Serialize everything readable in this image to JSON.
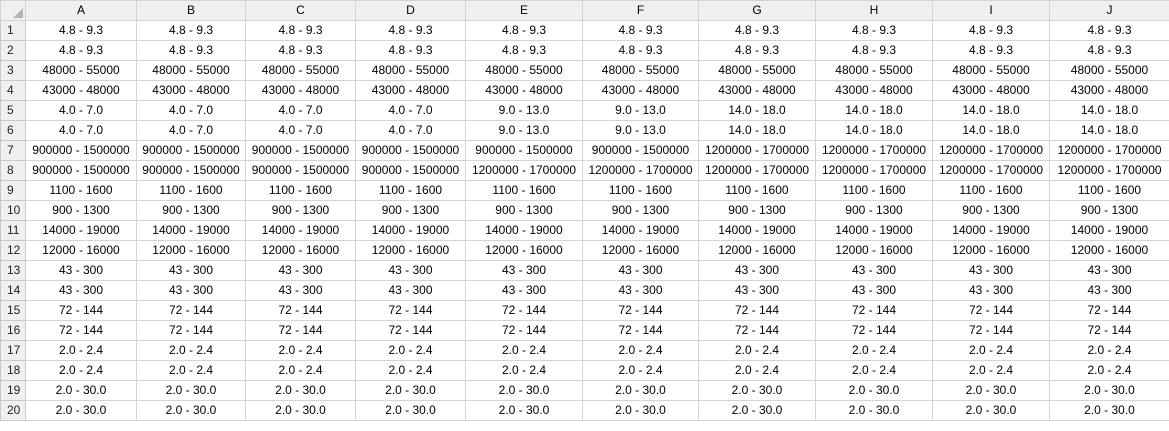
{
  "columns": [
    "A",
    "B",
    "C",
    "D",
    "E",
    "F",
    "G",
    "H",
    "I",
    "J"
  ],
  "rows": [
    {
      "num": "1",
      "cells": [
        "4.8 - 9.3",
        "4.8 - 9.3",
        "4.8 - 9.3",
        "4.8 - 9.3",
        "4.8 - 9.3",
        "4.8 - 9.3",
        "4.8 - 9.3",
        "4.8 - 9.3",
        "4.8 - 9.3",
        "4.8 - 9.3"
      ]
    },
    {
      "num": "2",
      "cells": [
        "4.8 - 9.3",
        "4.8 - 9.3",
        "4.8 - 9.3",
        "4.8 - 9.3",
        "4.8 - 9.3",
        "4.8 - 9.3",
        "4.8 - 9.3",
        "4.8 - 9.3",
        "4.8 - 9.3",
        "4.8 - 9.3"
      ]
    },
    {
      "num": "3",
      "cells": [
        "48000 - 55000",
        "48000 - 55000",
        "48000 - 55000",
        "48000 - 55000",
        "48000 - 55000",
        "48000 - 55000",
        "48000 - 55000",
        "48000 - 55000",
        "48000 - 55000",
        "48000 - 55000"
      ]
    },
    {
      "num": "4",
      "cells": [
        "43000 - 48000",
        "43000 - 48000",
        "43000 - 48000",
        "43000 - 48000",
        "43000 - 48000",
        "43000 - 48000",
        "43000 - 48000",
        "43000 - 48000",
        "43000 - 48000",
        "43000 - 48000"
      ]
    },
    {
      "num": "5",
      "cells": [
        "4.0 - 7.0",
        "4.0 - 7.0",
        "4.0 - 7.0",
        "4.0 - 7.0",
        "9.0 - 13.0",
        "9.0 - 13.0",
        "14.0 - 18.0",
        "14.0 - 18.0",
        "14.0 - 18.0",
        "14.0 - 18.0"
      ]
    },
    {
      "num": "6",
      "cells": [
        "4.0 - 7.0",
        "4.0 - 7.0",
        "4.0 - 7.0",
        "4.0 - 7.0",
        "9.0 - 13.0",
        "9.0 - 13.0",
        "14.0 - 18.0",
        "14.0 - 18.0",
        "14.0 - 18.0",
        "14.0 - 18.0"
      ]
    },
    {
      "num": "7",
      "cells": [
        "900000 - 1500000",
        "900000 - 1500000",
        "900000 - 1500000",
        "900000 - 1500000",
        "900000 - 1500000",
        "900000 - 1500000",
        "1200000 - 1700000",
        "1200000 - 1700000",
        "1200000 - 1700000",
        "1200000 - 1700000"
      ]
    },
    {
      "num": "8",
      "cells": [
        "900000 - 1500000",
        "900000 - 1500000",
        "900000 - 1500000",
        "900000 - 1500000",
        "1200000 - 1700000",
        "1200000 - 1700000",
        "1200000 - 1700000",
        "1200000 - 1700000",
        "1200000 - 1700000",
        "1200000 - 1700000"
      ]
    },
    {
      "num": "9",
      "cells": [
        "1100 - 1600",
        "1100 - 1600",
        "1100 - 1600",
        "1100 - 1600",
        "1100 - 1600",
        "1100 - 1600",
        "1100 - 1600",
        "1100 - 1600",
        "1100 - 1600",
        "1100 - 1600"
      ]
    },
    {
      "num": "10",
      "cells": [
        "900 - 1300",
        "900 - 1300",
        "900 - 1300",
        "900 - 1300",
        "900 - 1300",
        "900 - 1300",
        "900 - 1300",
        "900 - 1300",
        "900 - 1300",
        "900 - 1300"
      ]
    },
    {
      "num": "11",
      "cells": [
        "14000 - 19000",
        "14000 - 19000",
        "14000 - 19000",
        "14000 - 19000",
        "14000 - 19000",
        "14000 - 19000",
        "14000 - 19000",
        "14000 - 19000",
        "14000 - 19000",
        "14000 - 19000"
      ]
    },
    {
      "num": "12",
      "cells": [
        "12000 - 16000",
        "12000 - 16000",
        "12000 - 16000",
        "12000 - 16000",
        "12000 - 16000",
        "12000 - 16000",
        "12000 - 16000",
        "12000 - 16000",
        "12000 - 16000",
        "12000 - 16000"
      ]
    },
    {
      "num": "13",
      "cells": [
        "43 - 300",
        "43 - 300",
        "43 - 300",
        "43 - 300",
        "43 - 300",
        "43 - 300",
        "43 - 300",
        "43 - 300",
        "43 - 300",
        "43 - 300"
      ]
    },
    {
      "num": "14",
      "cells": [
        "43 - 300",
        "43 - 300",
        "43 - 300",
        "43 - 300",
        "43 - 300",
        "43 - 300",
        "43 - 300",
        "43 - 300",
        "43 - 300",
        "43 - 300"
      ]
    },
    {
      "num": "15",
      "cells": [
        "72 - 144",
        "72 - 144",
        "72 - 144",
        "72 - 144",
        "72 - 144",
        "72 - 144",
        "72 - 144",
        "72 - 144",
        "72 - 144",
        "72 - 144"
      ]
    },
    {
      "num": "16",
      "cells": [
        "72 - 144",
        "72 - 144",
        "72 - 144",
        "72 - 144",
        "72 - 144",
        "72 - 144",
        "72 - 144",
        "72 - 144",
        "72 - 144",
        "72 - 144"
      ]
    },
    {
      "num": "17",
      "cells": [
        "2.0 - 2.4",
        "2.0 - 2.4",
        "2.0 - 2.4",
        "2.0 - 2.4",
        "2.0 - 2.4",
        "2.0 - 2.4",
        "2.0 - 2.4",
        "2.0 - 2.4",
        "2.0 - 2.4",
        "2.0 - 2.4"
      ]
    },
    {
      "num": "18",
      "cells": [
        "2.0 - 2.4",
        "2.0 - 2.4",
        "2.0 - 2.4",
        "2.0 - 2.4",
        "2.0 - 2.4",
        "2.0 - 2.4",
        "2.0 - 2.4",
        "2.0 - 2.4",
        "2.0 - 2.4",
        "2.0 - 2.4"
      ]
    },
    {
      "num": "19",
      "cells": [
        "2.0 - 30.0",
        "2.0 - 30.0",
        "2.0 - 30.0",
        "2.0 - 30.0",
        "2.0 - 30.0",
        "2.0 - 30.0",
        "2.0 - 30.0",
        "2.0 - 30.0",
        "2.0 - 30.0",
        "2.0 - 30.0"
      ]
    },
    {
      "num": "20",
      "cells": [
        "2.0 - 30.0",
        "2.0 - 30.0",
        "2.0 - 30.0",
        "2.0 - 30.0",
        "2.0 - 30.0",
        "2.0 - 30.0",
        "2.0 - 30.0",
        "2.0 - 30.0",
        "2.0 - 30.0",
        "2.0 - 30.0"
      ]
    }
  ]
}
